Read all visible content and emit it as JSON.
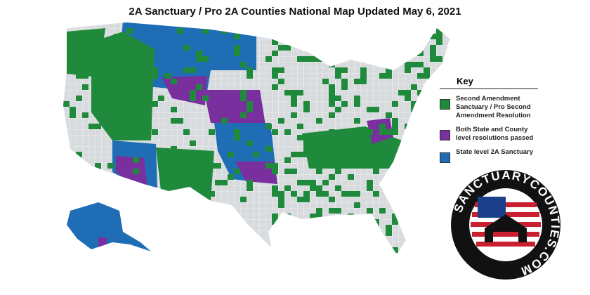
{
  "title": "2A Sanctuary / Pro 2A Counties National Map Updated May 6, 2021",
  "key": {
    "heading": "Key",
    "items": [
      {
        "label": "Second Amendment Sanctuary / Pro Second Amendment Resolution",
        "color": "#1f8a3b"
      },
      {
        "label": "Both State and County level resolutions passed",
        "color": "#7a2f9e"
      },
      {
        "label": "State level 2A Sanctuary",
        "color": "#1f6db5"
      }
    ]
  },
  "logo": {
    "text": "SANCTUARYCOUNTIES.COM"
  }
}
